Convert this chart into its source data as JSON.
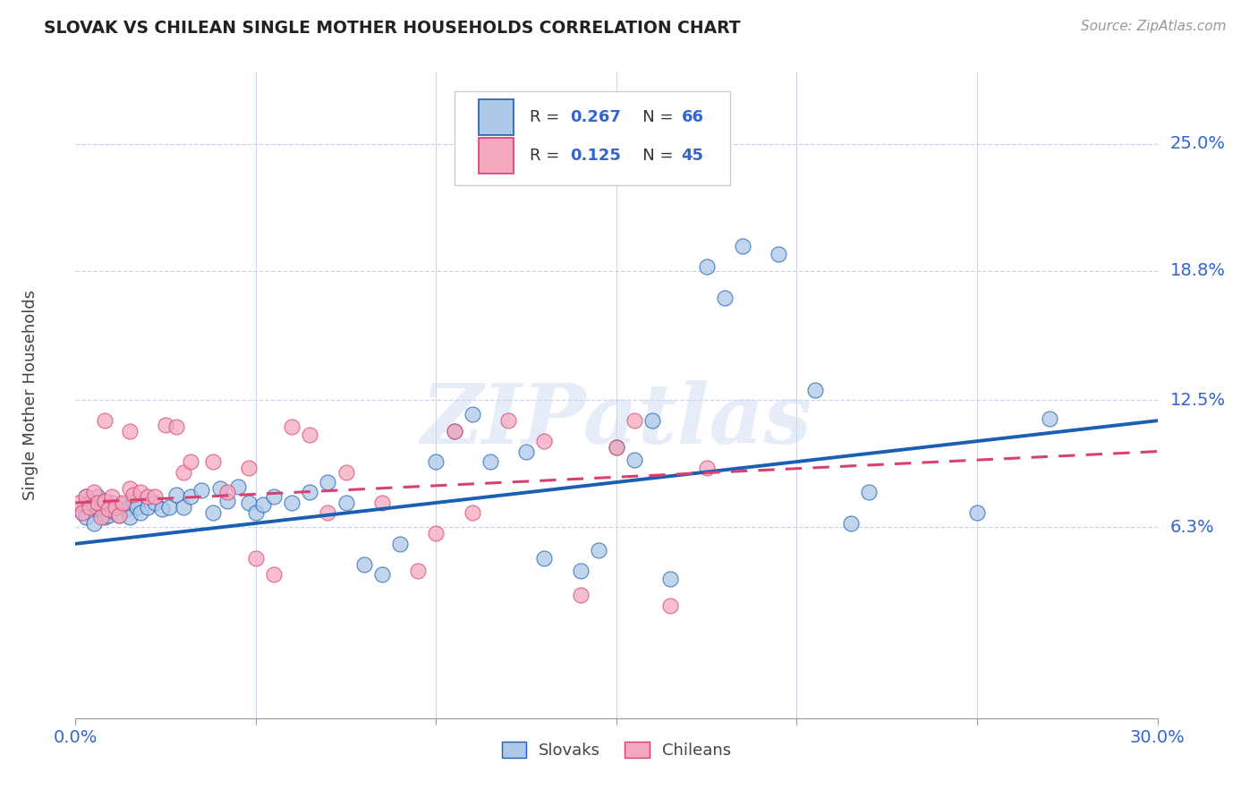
{
  "title": "SLOVAK VS CHILEAN SINGLE MOTHER HOUSEHOLDS CORRELATION CHART",
  "source": "Source: ZipAtlas.com",
  "ylabel": "Single Mother Households",
  "xlim": [
    0.0,
    0.3
  ],
  "ylim": [
    -0.03,
    0.285
  ],
  "yticks": [
    0.063,
    0.125,
    0.188,
    0.25
  ],
  "ytick_labels": [
    "6.3%",
    "12.5%",
    "18.8%",
    "25.0%"
  ],
  "xticks": [
    0.0,
    0.05,
    0.1,
    0.15,
    0.2,
    0.25,
    0.3
  ],
  "xtick_labels": [
    "0.0%",
    "",
    "",
    "",
    "",
    "",
    "30.0%"
  ],
  "legend_slovak_R": "0.267",
  "legend_slovak_N": "66",
  "legend_chilean_R": "0.125",
  "legend_chilean_N": "45",
  "slovak_color": "#adc8e8",
  "chilean_color": "#f5a8be",
  "slovak_line_color": "#1a5fb4",
  "chilean_line_color": "#d94070",
  "watermark": "ZIPatlas",
  "background_color": "#ffffff",
  "grid_color": "#c8d4e8",
  "axis_label_color": "#3366cc",
  "title_color": "#222222",
  "slovak_x": [
    0.001,
    0.002,
    0.003,
    0.003,
    0.004,
    0.005,
    0.006,
    0.006,
    0.007,
    0.008,
    0.008,
    0.009,
    0.01,
    0.01,
    0.011,
    0.012,
    0.013,
    0.014,
    0.015,
    0.016,
    0.017,
    0.018,
    0.02,
    0.022,
    0.024,
    0.026,
    0.028,
    0.03,
    0.032,
    0.035,
    0.038,
    0.04,
    0.042,
    0.045,
    0.048,
    0.05,
    0.052,
    0.055,
    0.06,
    0.065,
    0.07,
    0.075,
    0.08,
    0.085,
    0.09,
    0.1,
    0.105,
    0.11,
    0.115,
    0.125,
    0.13,
    0.14,
    0.145,
    0.15,
    0.155,
    0.16,
    0.165,
    0.175,
    0.18,
    0.185,
    0.195,
    0.205,
    0.215,
    0.22,
    0.25,
    0.27
  ],
  "slovak_y": [
    0.072,
    0.07,
    0.068,
    0.078,
    0.075,
    0.065,
    0.073,
    0.078,
    0.072,
    0.068,
    0.076,
    0.069,
    0.075,
    0.071,
    0.073,
    0.069,
    0.074,
    0.072,
    0.068,
    0.076,
    0.073,
    0.07,
    0.073,
    0.075,
    0.072,
    0.073,
    0.079,
    0.073,
    0.078,
    0.081,
    0.07,
    0.082,
    0.076,
    0.083,
    0.075,
    0.07,
    0.074,
    0.078,
    0.075,
    0.08,
    0.085,
    0.075,
    0.045,
    0.04,
    0.055,
    0.095,
    0.11,
    0.118,
    0.095,
    0.1,
    0.048,
    0.042,
    0.052,
    0.102,
    0.096,
    0.115,
    0.038,
    0.19,
    0.175,
    0.2,
    0.196,
    0.13,
    0.065,
    0.08,
    0.07,
    0.116
  ],
  "chilean_x": [
    0.001,
    0.002,
    0.003,
    0.004,
    0.005,
    0.006,
    0.007,
    0.008,
    0.009,
    0.01,
    0.011,
    0.012,
    0.013,
    0.015,
    0.016,
    0.018,
    0.02,
    0.022,
    0.025,
    0.028,
    0.03,
    0.032,
    0.038,
    0.042,
    0.048,
    0.05,
    0.055,
    0.06,
    0.065,
    0.07,
    0.075,
    0.085,
    0.095,
    0.1,
    0.105,
    0.11,
    0.12,
    0.13,
    0.14,
    0.15,
    0.155,
    0.165,
    0.175,
    0.015,
    0.008
  ],
  "chilean_y": [
    0.075,
    0.07,
    0.078,
    0.073,
    0.08,
    0.075,
    0.068,
    0.076,
    0.072,
    0.078,
    0.073,
    0.069,
    0.075,
    0.082,
    0.079,
    0.08,
    0.078,
    0.078,
    0.113,
    0.112,
    0.09,
    0.095,
    0.095,
    0.08,
    0.092,
    0.048,
    0.04,
    0.112,
    0.108,
    0.07,
    0.09,
    0.075,
    0.042,
    0.06,
    0.11,
    0.07,
    0.115,
    0.105,
    0.03,
    0.102,
    0.115,
    0.025,
    0.092,
    0.11,
    0.115
  ]
}
